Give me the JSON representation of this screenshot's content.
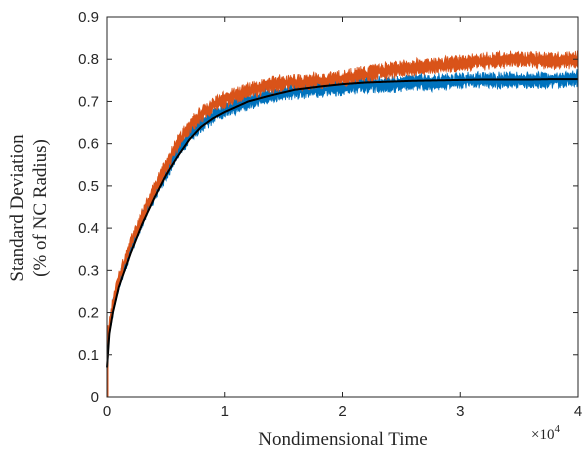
{
  "chart_data": {
    "type": "line",
    "title": "",
    "xlabel": "Nondimensional Time",
    "ylabel_lines": [
      "Standard Deviation",
      "(% of NC Radius)"
    ],
    "x_scale_note": {
      "base": "×10",
      "exponent": "4"
    },
    "xlim": [
      0,
      4
    ],
    "ylim": [
      0,
      0.9
    ],
    "x_ticks": [
      0,
      1,
      2,
      3,
      4
    ],
    "x_tick_labels": [
      "0",
      "1",
      "2",
      "3",
      "4"
    ],
    "y_ticks": [
      0,
      0.1,
      0.2,
      0.3,
      0.4,
      0.5,
      0.6,
      0.7,
      0.8,
      0.9
    ],
    "y_tick_labels": [
      "0",
      "0.1",
      "0.2",
      "0.3",
      "0.4",
      "0.5",
      "0.6",
      "0.7",
      "0.8",
      "0.9"
    ],
    "grid": false,
    "series": [
      {
        "color": "#0072bd",
        "style": "noisy-band",
        "x": [
          0,
          0.02,
          0.05,
          0.1,
          0.2,
          0.3,
          0.4,
          0.5,
          0.6,
          0.7,
          0.8,
          0.9,
          1.0,
          1.2,
          1.4,
          1.6,
          1.8,
          2.0,
          2.2,
          2.4,
          2.6,
          2.8,
          3.0,
          3.2,
          3.4,
          3.6,
          3.8,
          4.0
        ],
        "values": [
          0.06,
          0.16,
          0.21,
          0.27,
          0.35,
          0.42,
          0.48,
          0.53,
          0.58,
          0.62,
          0.645,
          0.665,
          0.68,
          0.7,
          0.715,
          0.725,
          0.73,
          0.735,
          0.74,
          0.74,
          0.745,
          0.745,
          0.75,
          0.75,
          0.75,
          0.75,
          0.75,
          0.755
        ]
      },
      {
        "color": "#d95319",
        "style": "noisy-band",
        "x": [
          0,
          0.02,
          0.05,
          0.1,
          0.2,
          0.3,
          0.4,
          0.5,
          0.6,
          0.7,
          0.8,
          0.9,
          1.0,
          1.2,
          1.4,
          1.6,
          1.8,
          2.0,
          2.2,
          2.4,
          2.6,
          2.8,
          3.0,
          3.2,
          3.4,
          3.6,
          3.8,
          4.0
        ],
        "values": [
          0.06,
          0.17,
          0.22,
          0.28,
          0.36,
          0.43,
          0.49,
          0.545,
          0.6,
          0.64,
          0.67,
          0.69,
          0.705,
          0.725,
          0.74,
          0.745,
          0.75,
          0.755,
          0.765,
          0.775,
          0.78,
          0.785,
          0.79,
          0.795,
          0.8,
          0.8,
          0.795,
          0.8
        ]
      },
      {
        "color": "#000000",
        "style": "fit",
        "x": [
          0,
          0.02,
          0.05,
          0.1,
          0.2,
          0.3,
          0.4,
          0.5,
          0.6,
          0.7,
          0.8,
          0.9,
          1.0,
          1.2,
          1.4,
          1.6,
          1.8,
          2.0,
          2.2,
          2.4,
          2.6,
          2.8,
          3.0,
          3.2,
          3.4,
          3.6,
          3.8,
          4.0
        ],
        "values": [
          0.07,
          0.15,
          0.2,
          0.26,
          0.34,
          0.41,
          0.47,
          0.525,
          0.57,
          0.61,
          0.64,
          0.66,
          0.675,
          0.7,
          0.715,
          0.728,
          0.735,
          0.741,
          0.745,
          0.747,
          0.749,
          0.75,
          0.751,
          0.752,
          0.752,
          0.752,
          0.753,
          0.753
        ]
      }
    ]
  }
}
